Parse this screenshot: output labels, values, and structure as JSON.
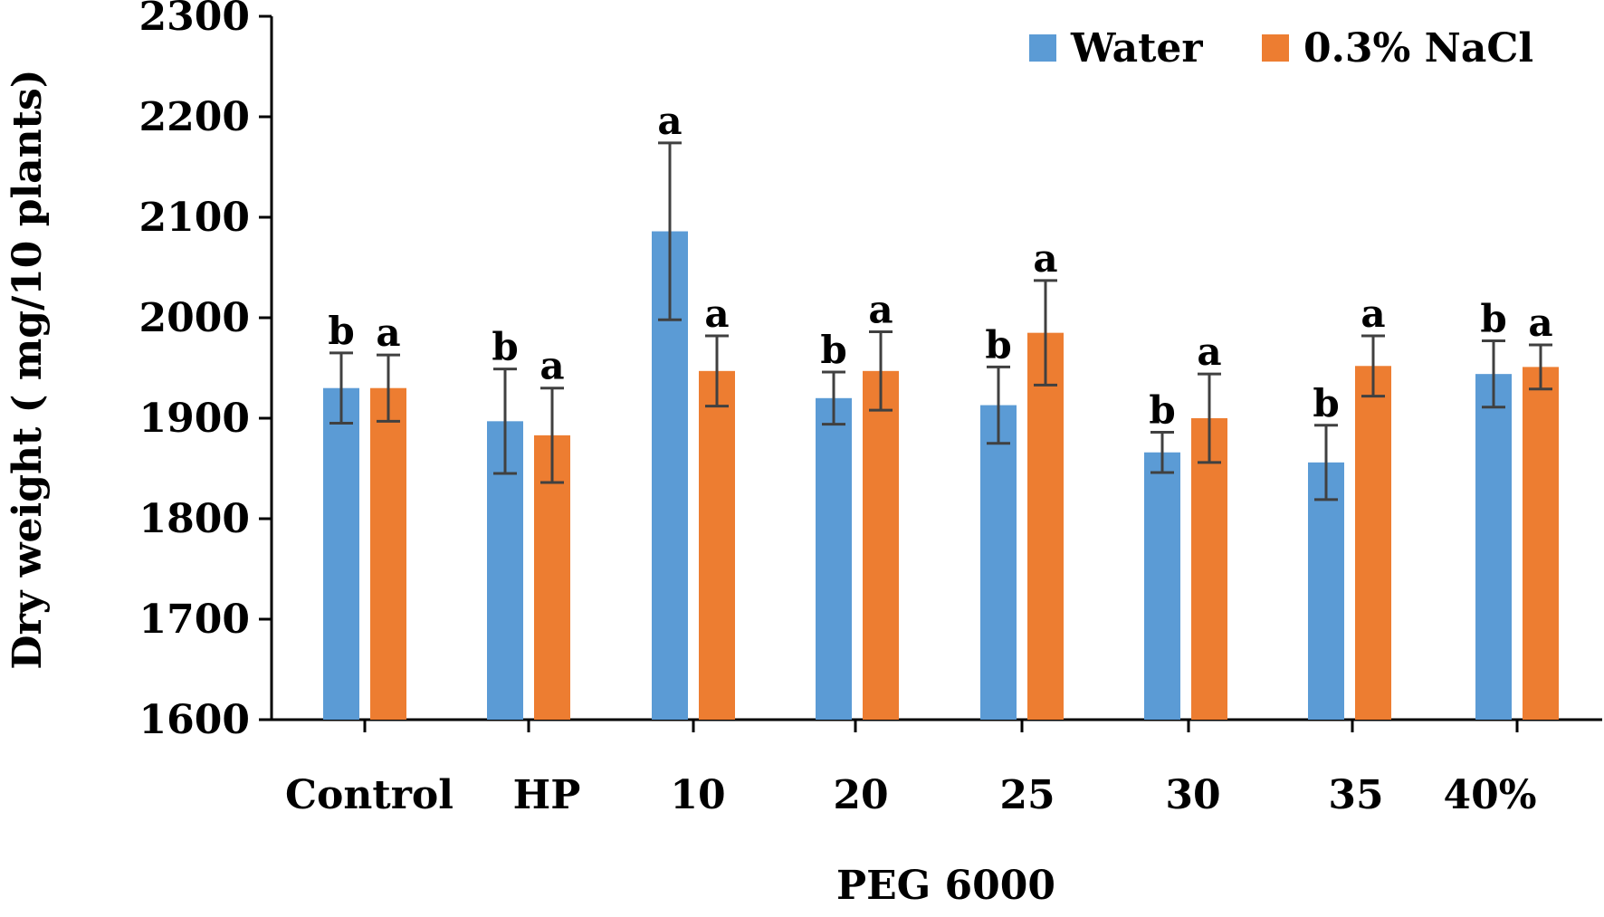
{
  "chart_data": {
    "type": "bar",
    "title": "",
    "xlabel": "PEG 6000",
    "ylabel": "Dry weight ( mg/10 plants)",
    "ylim": [
      1600,
      2300
    ],
    "yticks": [
      1600,
      1700,
      1800,
      1900,
      2000,
      2100,
      2200,
      2300
    ],
    "grid": false,
    "legend_position": "top-right",
    "categories": [
      "Control",
      "HP",
      "10",
      "20",
      "25",
      "30",
      "35",
      "40%"
    ],
    "series": [
      {
        "name": "Water",
        "color": "#5b9bd5",
        "values": [
          1930,
          1897,
          2086,
          1920,
          1913,
          1866,
          1856,
          1944
        ],
        "errors": [
          35,
          52,
          88,
          26,
          38,
          20,
          37,
          33
        ],
        "significance": [
          "b",
          "b",
          "a",
          "b",
          "b",
          "b",
          "b",
          "b"
        ]
      },
      {
        "name": "0.3% NaCl",
        "color": "#ed7d31",
        "values": [
          1930,
          1883,
          1947,
          1947,
          1985,
          1900,
          1952,
          1951
        ],
        "errors": [
          33,
          47,
          35,
          39,
          52,
          44,
          30,
          22
        ],
        "significance": [
          "a",
          "a",
          "a",
          "a",
          "a",
          "a",
          "a",
          "a"
        ]
      }
    ]
  },
  "colors": {
    "axis": "#000000",
    "error_bar": "#404040"
  }
}
